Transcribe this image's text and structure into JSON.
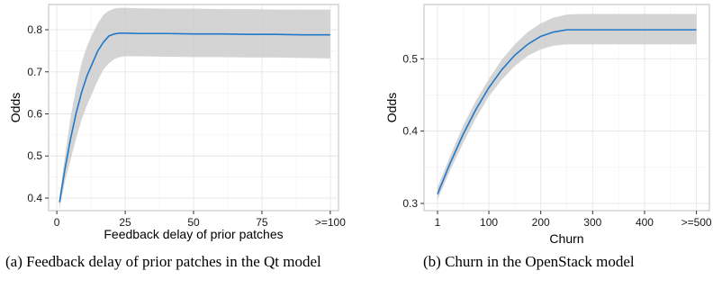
{
  "chart_data": [
    {
      "type": "line",
      "xlabel": "Feedback delay of prior patches",
      "ylabel": "Odds",
      "xlim": [
        -3,
        103
      ],
      "ylim": [
        0.37,
        0.86
      ],
      "x_ticks": [
        {
          "value": 0,
          "label": "0"
        },
        {
          "value": 25,
          "label": "25"
        },
        {
          "value": 50,
          "label": "50"
        },
        {
          "value": 75,
          "label": "75"
        },
        {
          "value": 100,
          "label": ">=100"
        }
      ],
      "y_ticks": [
        {
          "value": 0.4,
          "label": "0.4"
        },
        {
          "value": 0.5,
          "label": "0.5"
        },
        {
          "value": 0.6,
          "label": "0.6"
        },
        {
          "value": 0.7,
          "label": "0.7"
        },
        {
          "value": 0.8,
          "label": "0.8"
        }
      ],
      "grid": true,
      "x": [
        1,
        3,
        5,
        7,
        9,
        11,
        13,
        15,
        17,
        19,
        21,
        23,
        25,
        30,
        40,
        50,
        60,
        70,
        80,
        90,
        100
      ],
      "y": [
        0.39,
        0.47,
        0.54,
        0.6,
        0.65,
        0.69,
        0.72,
        0.75,
        0.77,
        0.785,
        0.79,
        0.792,
        0.792,
        0.791,
        0.791,
        0.79,
        0.79,
        0.789,
        0.789,
        0.788,
        0.788
      ],
      "lower": [
        0.375,
        0.44,
        0.49,
        0.54,
        0.585,
        0.62,
        0.65,
        0.68,
        0.705,
        0.72,
        0.73,
        0.735,
        0.737,
        0.737,
        0.736,
        0.735,
        0.735,
        0.734,
        0.734,
        0.733,
        0.732
      ],
      "upper": [
        0.405,
        0.5,
        0.59,
        0.66,
        0.72,
        0.76,
        0.79,
        0.815,
        0.835,
        0.845,
        0.85,
        0.852,
        0.852,
        0.851,
        0.85,
        0.85,
        0.849,
        0.849,
        0.848,
        0.848,
        0.848
      ],
      "line_color": "#1f78c8",
      "band_color": "#cccccc",
      "caption": "(a) Feedback delay of prior patches in the Qt model"
    },
    {
      "type": "line",
      "xlabel": "Churn",
      "ylabel": "Odds",
      "xlim": [
        -25,
        525
      ],
      "ylim": [
        0.29,
        0.575
      ],
      "x_ticks": [
        {
          "value": 1,
          "label": "1"
        },
        {
          "value": 100,
          "label": "100"
        },
        {
          "value": 200,
          "label": "200"
        },
        {
          "value": 300,
          "label": "300"
        },
        {
          "value": 400,
          "label": "400"
        },
        {
          "value": 500,
          "label": ">=500"
        }
      ],
      "y_ticks": [
        {
          "value": 0.3,
          "label": "0.3"
        },
        {
          "value": 0.4,
          "label": "0.4"
        },
        {
          "value": 0.5,
          "label": "0.5"
        }
      ],
      "grid": true,
      "x": [
        1,
        25,
        50,
        75,
        100,
        125,
        150,
        175,
        200,
        225,
        250,
        275,
        300,
        350,
        400,
        450,
        500
      ],
      "y": [
        0.313,
        0.355,
        0.395,
        0.43,
        0.46,
        0.485,
        0.505,
        0.52,
        0.531,
        0.537,
        0.54,
        0.54,
        0.54,
        0.54,
        0.54,
        0.54,
        0.54
      ],
      "lower": [
        0.305,
        0.345,
        0.383,
        0.418,
        0.448,
        0.471,
        0.49,
        0.504,
        0.513,
        0.518,
        0.52,
        0.52,
        0.52,
        0.52,
        0.52,
        0.52,
        0.52
      ],
      "upper": [
        0.322,
        0.365,
        0.407,
        0.442,
        0.472,
        0.499,
        0.52,
        0.537,
        0.549,
        0.557,
        0.561,
        0.562,
        0.562,
        0.562,
        0.562,
        0.562,
        0.562
      ],
      "line_color": "#1f78c8",
      "band_color": "#cccccc",
      "caption": "(b) Churn in the OpenStack model"
    }
  ]
}
